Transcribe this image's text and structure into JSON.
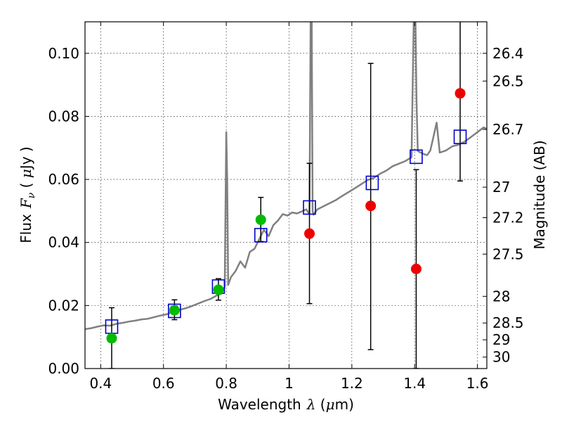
{
  "chart_data": {
    "type": "scatter",
    "xlabel": "Wavelength",
    "xlabel_math": "λ",
    "xlabel_unit_open": " (",
    "xlabel_unit_math": "μ",
    "xlabel_unit_close": "m)",
    "ylabel": "Flux",
    "ylabel_math": "F",
    "ylabel_math_sub": "ν",
    "ylabel_unit_open": " ( ",
    "ylabel_unit_math": "μ",
    "ylabel_unit_close": "Jy )",
    "y2label": "Magnitude (AB)",
    "xlim": [
      0.35,
      1.63
    ],
    "ylim": [
      0.0,
      0.11
    ],
    "grid": true,
    "x_ticks": [
      {
        "value": 0.4,
        "label": "0.4"
      },
      {
        "value": 0.6,
        "label": "0.6"
      },
      {
        "value": 0.8,
        "label": "0.8"
      },
      {
        "value": 1.0,
        "label": "1"
      },
      {
        "value": 1.2,
        "label": "1.2"
      },
      {
        "value": 1.4,
        "label": "1.4"
      },
      {
        "value": 1.6,
        "label": "1.6"
      }
    ],
    "y_ticks": [
      {
        "value": 0.0,
        "label": "0.00"
      },
      {
        "value": 0.02,
        "label": "0.02"
      },
      {
        "value": 0.04,
        "label": "0.04"
      },
      {
        "value": 0.06,
        "label": "0.06"
      },
      {
        "value": 0.08,
        "label": "0.08"
      },
      {
        "value": 0.1,
        "label": "0.10"
      }
    ],
    "y2_ticks": [
      {
        "value": 26.4,
        "label": "26.4"
      },
      {
        "value": 26.5,
        "label": "26.5"
      },
      {
        "value": 26.7,
        "label": "26.7"
      },
      {
        "value": 27.0,
        "label": "27"
      },
      {
        "value": 27.2,
        "label": "27.2"
      },
      {
        "value": 27.5,
        "label": "27.5"
      },
      {
        "value": 28.0,
        "label": "28"
      },
      {
        "value": 28.5,
        "label": "28.5"
      },
      {
        "value": 29.0,
        "label": "29"
      },
      {
        "value": 30.0,
        "label": "30"
      }
    ],
    "spectrum": {
      "color": "#808080",
      "x": [
        0.35,
        0.37,
        0.39,
        0.41,
        0.43,
        0.45,
        0.47,
        0.49,
        0.51,
        0.53,
        0.55,
        0.57,
        0.59,
        0.61,
        0.63,
        0.65,
        0.67,
        0.69,
        0.71,
        0.73,
        0.75,
        0.77,
        0.785,
        0.795,
        0.8,
        0.803,
        0.806,
        0.815,
        0.83,
        0.845,
        0.86,
        0.875,
        0.89,
        0.905,
        0.92,
        0.935,
        0.95,
        0.965,
        0.98,
        0.995,
        1.01,
        1.025,
        1.04,
        1.055,
        1.065,
        1.069,
        1.072,
        1.075,
        1.078,
        1.09,
        1.11,
        1.13,
        1.15,
        1.17,
        1.19,
        1.21,
        1.23,
        1.25,
        1.27,
        1.29,
        1.31,
        1.33,
        1.35,
        1.37,
        1.39,
        1.398,
        1.402,
        1.406,
        1.41,
        1.42,
        1.43,
        1.44,
        1.45,
        1.46,
        1.47,
        1.48,
        1.5,
        1.52,
        1.54,
        1.56,
        1.58,
        1.6,
        1.62,
        1.63
      ],
      "y": [
        0.0125,
        0.0128,
        0.0133,
        0.0137,
        0.0136,
        0.0142,
        0.0145,
        0.0149,
        0.0152,
        0.0156,
        0.0158,
        0.0163,
        0.0168,
        0.0172,
        0.0181,
        0.0186,
        0.0191,
        0.0198,
        0.0206,
        0.0214,
        0.0221,
        0.0232,
        0.0238,
        0.026,
        0.075,
        0.06,
        0.0265,
        0.029,
        0.031,
        0.034,
        0.032,
        0.037,
        0.038,
        0.041,
        0.044,
        0.042,
        0.0455,
        0.047,
        0.049,
        0.0485,
        0.0495,
        0.0492,
        0.0498,
        0.0505,
        0.049,
        0.115,
        0.115,
        0.05,
        0.0488,
        0.0505,
        0.0515,
        0.0525,
        0.0535,
        0.0548,
        0.056,
        0.0572,
        0.0585,
        0.0598,
        0.0605,
        0.0618,
        0.0628,
        0.0642,
        0.065,
        0.0658,
        0.067,
        0.115,
        0.115,
        0.085,
        0.069,
        0.0685,
        0.068,
        0.0677,
        0.0692,
        0.0735,
        0.078,
        0.0685,
        0.0692,
        0.0705,
        0.071,
        0.072,
        0.0735,
        0.075,
        0.0765,
        0.076
      ]
    },
    "model_points": {
      "name": "",
      "color": "#0000cc",
      "x": [
        0.435,
        0.635,
        0.775,
        0.91,
        1.065,
        1.265,
        1.405,
        1.545
      ],
      "y": [
        0.0133,
        0.0183,
        0.026,
        0.0423,
        0.0511,
        0.0589,
        0.0672,
        0.0735
      ]
    },
    "detections": {
      "name": "",
      "color": "#00bb00",
      "x": [
        0.435,
        0.635,
        0.775,
        0.91
      ],
      "y": [
        0.0096,
        0.0185,
        0.025,
        0.0472
      ],
      "yerr_low": [
        0.0,
        0.0155,
        0.0217,
        0.0403
      ],
      "yerr_high": [
        0.0193,
        0.0218,
        0.0285,
        0.0543
      ]
    },
    "nondetections": {
      "name": "",
      "color": "#ee0000",
      "x": [
        1.065,
        1.26,
        1.405,
        1.545
      ],
      "y": [
        0.0428,
        0.0516,
        0.0316,
        0.0873
      ],
      "yerr_low": [
        0.0206,
        0.006,
        0.0,
        0.0595
      ],
      "yerr_high": [
        0.0651,
        0.0968,
        0.0631,
        0.115
      ]
    }
  }
}
